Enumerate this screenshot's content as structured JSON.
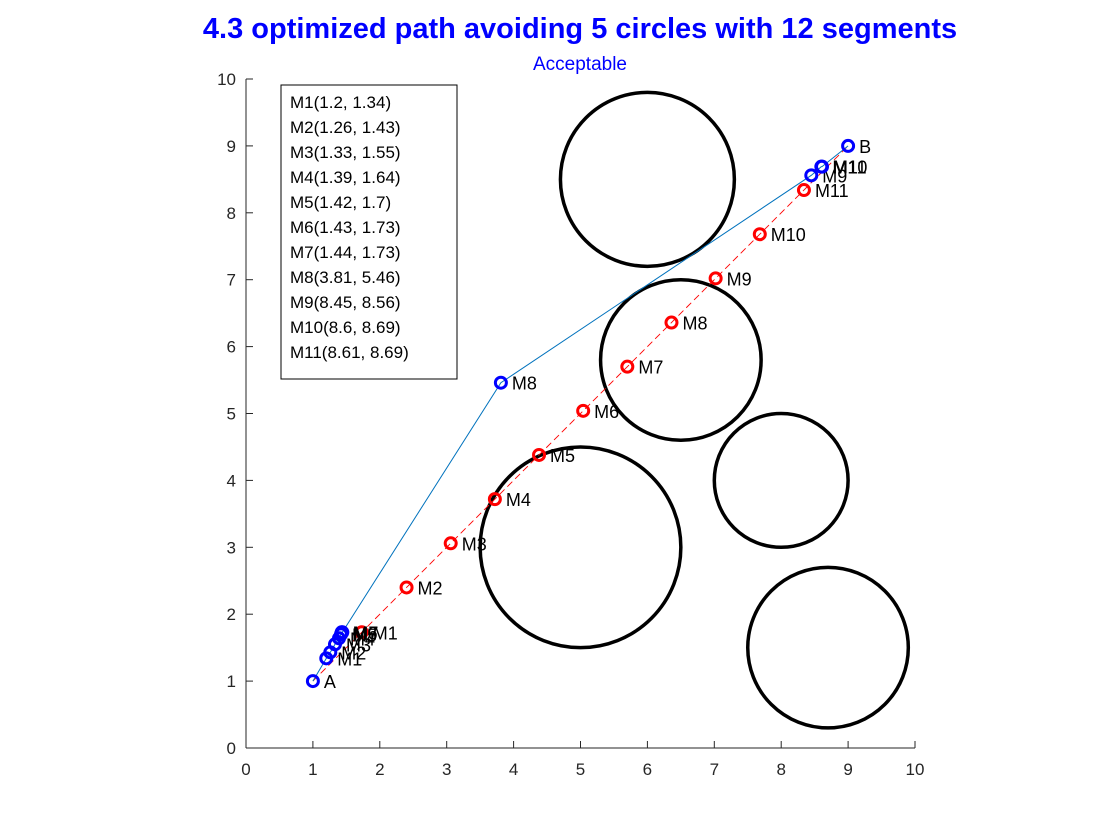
{
  "chart_data": {
    "type": "line",
    "title": "4.3 optimized path avoiding 5 circles with 12 segments",
    "subtitle": "Acceptable",
    "xlim": [
      0,
      10
    ],
    "ylim": [
      0,
      10
    ],
    "xticks": [
      "0",
      "1",
      "2",
      "3",
      "4",
      "5",
      "6",
      "7",
      "8",
      "9",
      "10"
    ],
    "yticks": [
      "0",
      "1",
      "2",
      "3",
      "4",
      "5",
      "6",
      "7",
      "8",
      "9",
      "10"
    ],
    "grid": false,
    "colors": {
      "title": "#0000ff",
      "optimized": "#0000ff",
      "optimized_line": "#0072bd",
      "initial": "#ff0000",
      "obstacle": "#000000",
      "axis": "#262626"
    },
    "obstacles": [
      {
        "cx": 6.0,
        "cy": 8.5,
        "r": 1.3
      },
      {
        "cx": 6.5,
        "cy": 5.8,
        "r": 1.2
      },
      {
        "cx": 5.0,
        "cy": 3.0,
        "r": 1.5
      },
      {
        "cx": 8.0,
        "cy": 4.0,
        "r": 1.0
      },
      {
        "cx": 8.7,
        "cy": 1.5,
        "r": 1.2
      }
    ],
    "initial_path": {
      "points": [
        {
          "x": 1.0,
          "y": 1.0,
          "label": ""
        },
        {
          "x": 1.73,
          "y": 1.73,
          "label": "M1"
        },
        {
          "x": 2.4,
          "y": 2.4,
          "label": "M2"
        },
        {
          "x": 3.06,
          "y": 3.06,
          "label": "M3"
        },
        {
          "x": 3.72,
          "y": 3.72,
          "label": "M4"
        },
        {
          "x": 4.38,
          "y": 4.38,
          "label": "M5"
        },
        {
          "x": 5.04,
          "y": 5.04,
          "label": "M6"
        },
        {
          "x": 5.7,
          "y": 5.7,
          "label": "M7"
        },
        {
          "x": 6.36,
          "y": 6.36,
          "label": "M8"
        },
        {
          "x": 7.02,
          "y": 7.02,
          "label": "M9"
        },
        {
          "x": 7.68,
          "y": 7.68,
          "label": "M10"
        },
        {
          "x": 8.34,
          "y": 8.34,
          "label": "M11"
        },
        {
          "x": 9.0,
          "y": 9.0,
          "label": ""
        }
      ]
    },
    "optimized_path": {
      "points": [
        {
          "x": 1.0,
          "y": 1.0,
          "label": "A"
        },
        {
          "x": 1.2,
          "y": 1.34,
          "label": "M1"
        },
        {
          "x": 1.26,
          "y": 1.43,
          "label": "M2"
        },
        {
          "x": 1.33,
          "y": 1.55,
          "label": "M3"
        },
        {
          "x": 1.39,
          "y": 1.64,
          "label": "M4"
        },
        {
          "x": 1.42,
          "y": 1.7,
          "label": "M5"
        },
        {
          "x": 1.43,
          "y": 1.73,
          "label": "M6"
        },
        {
          "x": 1.44,
          "y": 1.73,
          "label": "M7"
        },
        {
          "x": 3.81,
          "y": 5.46,
          "label": "M8"
        },
        {
          "x": 8.45,
          "y": 8.56,
          "label": "M9"
        },
        {
          "x": 8.6,
          "y": 8.69,
          "label": "M10"
        },
        {
          "x": 8.61,
          "y": 8.69,
          "label": "M11"
        },
        {
          "x": 9.0,
          "y": 9.0,
          "label": "B"
        }
      ]
    },
    "legend": {
      "placement": "top-left",
      "entries": [
        "M1(1.2, 1.34)",
        "M2(1.26, 1.43)",
        "M3(1.33, 1.55)",
        "M4(1.39, 1.64)",
        "M5(1.42, 1.7)",
        "M6(1.43, 1.73)",
        "M7(1.44, 1.73)",
        "M8(3.81, 5.46)",
        "M9(8.45, 8.56)",
        "M10(8.6, 8.69)",
        "M11(8.61, 8.69)"
      ]
    }
  }
}
